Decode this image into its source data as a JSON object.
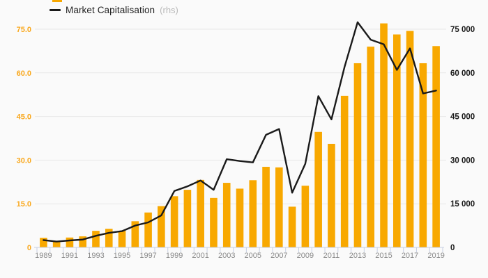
{
  "legend": {
    "partial_item": {
      "color": "#F8A800"
    },
    "line_item": {
      "label": "Market Capitalisation",
      "suffix": "(rhs)",
      "swatch_color": "#1A1A1A"
    }
  },
  "colors": {
    "bar": "#F8A800",
    "line": "#1A1A1A",
    "background": "#FAFAFA",
    "grid": "#E8E8E8",
    "axis": "#C7CFE2",
    "x_label": "#8A8A8A",
    "left_label": "#F9A81D",
    "right_label": "#1A1A1A"
  },
  "chart_data": {
    "type": "bar",
    "title": "",
    "categories": [
      1989,
      1990,
      1991,
      1992,
      1993,
      1994,
      1995,
      1996,
      1997,
      1998,
      1999,
      2000,
      2001,
      2002,
      2003,
      2004,
      2005,
      2006,
      2007,
      2008,
      2009,
      2010,
      2011,
      2012,
      2013,
      2014,
      2015,
      2016,
      2017,
      2018,
      2019
    ],
    "series": [
      {
        "name": "",
        "type": "bar",
        "axis": "left",
        "values": [
          3.3,
          2.0,
          3.4,
          3.8,
          5.7,
          6.4,
          5.7,
          9.0,
          12.0,
          14.2,
          17.6,
          19.8,
          23.2,
          17.0,
          22.2,
          20.2,
          23.1,
          27.7,
          27.5,
          14.0,
          21.2,
          39.7,
          35.6,
          52.1,
          63.3,
          69.0,
          77.0,
          73.2,
          74.4,
          63.3,
          69.2
        ]
      },
      {
        "name": "Market Capitalisation",
        "type": "line",
        "axis": "right",
        "values": [
          2500,
          2000,
          2400,
          2700,
          4000,
          5000,
          5600,
          7500,
          8600,
          11000,
          19400,
          21000,
          23000,
          19800,
          30300,
          29700,
          29200,
          38700,
          40700,
          18800,
          28700,
          52000,
          44000,
          62000,
          77400,
          71400,
          69800,
          61000,
          68400,
          52900,
          53900
        ]
      }
    ],
    "left_axis": {
      "range": [
        0,
        75
      ],
      "zero_label": "0",
      "ticks": [
        [
          15,
          "15.0"
        ],
        [
          30,
          "30.0"
        ],
        [
          45,
          "45.0"
        ],
        [
          60,
          "60.0"
        ],
        [
          75,
          "75.0"
        ]
      ]
    },
    "right_axis": {
      "range": [
        0,
        75000
      ],
      "zero_label": "0",
      "ticks": [
        [
          15000,
          "15 000"
        ],
        [
          30000,
          "30 000"
        ],
        [
          45000,
          "45 000"
        ],
        [
          60000,
          "60 000"
        ],
        [
          75000,
          "75 000"
        ]
      ]
    },
    "x_axis": {
      "labels": [
        "1989",
        "1991",
        "1993",
        "1995",
        "1997",
        "1999",
        "2001",
        "2003",
        "2005",
        "2007",
        "2009",
        "2011",
        "2013",
        "2015",
        "2017",
        "2019"
      ]
    },
    "grid": true,
    "legend_position": "top-left"
  }
}
